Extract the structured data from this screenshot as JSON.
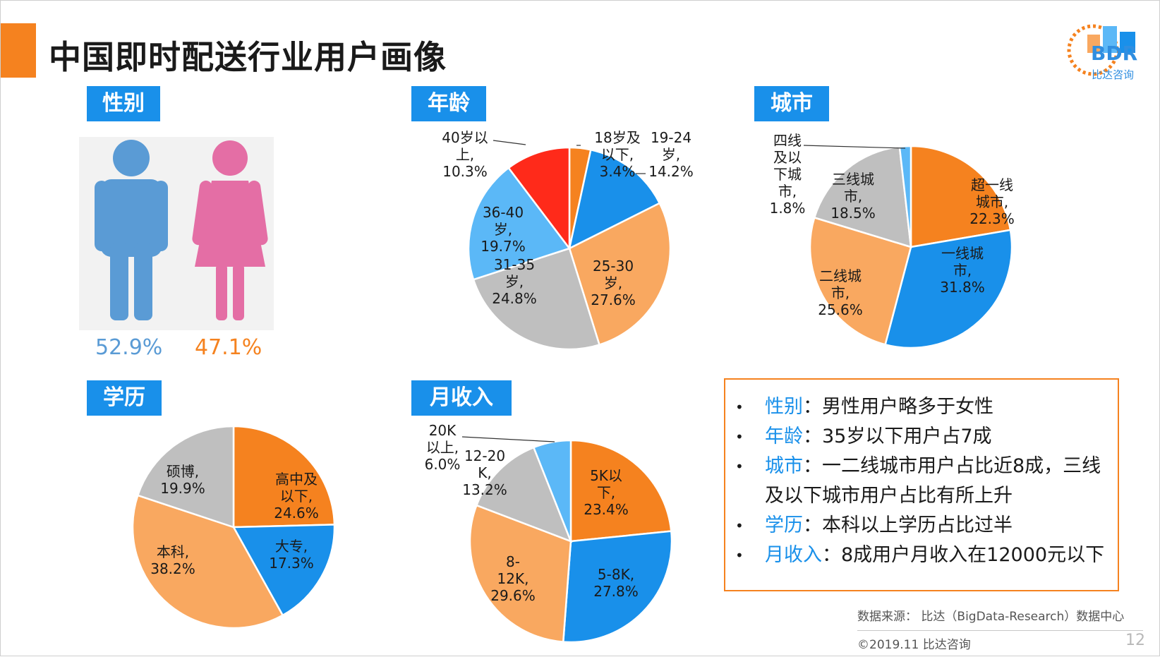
{
  "title": "中国即时配送行业用户画像",
  "logo": {
    "name": "BDR",
    "sub": "比达咨询"
  },
  "sections": {
    "gender": "性别",
    "age": "年龄",
    "city": "城市",
    "education": "学历",
    "income": "月收入"
  },
  "gender": {
    "male": "52.9%",
    "female": "47.1%",
    "male_color": "#5a9bd5",
    "female_color": "#e46ea5"
  },
  "summary": [
    {
      "key": "性别",
      "text": "：男性用户略多于女性"
    },
    {
      "key": "年龄",
      "text": "：35岁以下用户占7成"
    },
    {
      "key": "城市",
      "text": "：一二线城市用户占比近8成，三线及以下城市用户占比有所上升"
    },
    {
      "key": "学历",
      "text": "：本科以上学历占比过半"
    },
    {
      "key": "月收入",
      "text": "：8成用户月收入在12000元以下"
    }
  ],
  "source": "数据来源： 比达（BigData-Research）数据中心",
  "copyright": "©2019.11 比达咨询",
  "page_number": "12",
  "colors": {
    "orange": "#f5821f",
    "blue": "#1990ea",
    "light_orange": "#f9a860",
    "gray": "#bfbfbf",
    "light_blue": "#5bb8f7",
    "red": "#ff2a1a"
  },
  "chart_data": [
    {
      "type": "pie",
      "title": "年龄",
      "categories": [
        "18岁及以下",
        "19-24岁",
        "25-30岁",
        "31-35岁",
        "36-40岁",
        "40岁以上"
      ],
      "labels": [
        "18岁及以下,",
        "19-24岁,",
        "25-30岁,",
        "31-35岁,",
        "36-40岁,",
        "40岁以上,"
      ],
      "values": [
        3.4,
        14.2,
        27.6,
        24.8,
        19.7,
        10.3
      ],
      "colors": [
        "#f5821f",
        "#1990ea",
        "#f9a860",
        "#bfbfbf",
        "#5bb8f7",
        "#ff2a1a"
      ]
    },
    {
      "type": "pie",
      "title": "城市",
      "categories": [
        "超一线城市",
        "一线城市",
        "二线城市",
        "三线城市",
        "四线及以下城市"
      ],
      "values": [
        22.3,
        31.8,
        25.6,
        18.5,
        1.8
      ],
      "colors": [
        "#f5821f",
        "#1990ea",
        "#f9a860",
        "#bfbfbf",
        "#5bb8f7"
      ]
    },
    {
      "type": "pie",
      "title": "学历",
      "categories": [
        "高中及以下",
        "大专",
        "本科",
        "硕博"
      ],
      "values": [
        24.6,
        17.3,
        38.2,
        19.9
      ],
      "colors": [
        "#f5821f",
        "#1990ea",
        "#f9a860",
        "#bfbfbf"
      ]
    },
    {
      "type": "pie",
      "title": "月收入",
      "categories": [
        "5K以下",
        "5-8K",
        "8-12K",
        "12-20K",
        "20K以上"
      ],
      "values": [
        23.4,
        27.8,
        29.6,
        13.2,
        6.0
      ],
      "colors": [
        "#f5821f",
        "#1990ea",
        "#f9a860",
        "#bfbfbf",
        "#5bb8f7"
      ]
    }
  ]
}
